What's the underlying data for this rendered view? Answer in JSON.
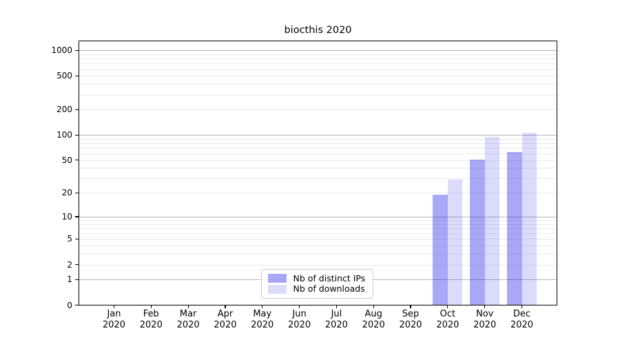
{
  "figure_title": "biocthis 2020",
  "chart_data": {
    "type": "bar",
    "title": "biocthis 2020",
    "categories": [
      "Jan",
      "Feb",
      "Mar",
      "Apr",
      "May",
      "Jun",
      "Jul",
      "Aug",
      "Sep",
      "Oct",
      "Nov",
      "Dec"
    ],
    "year_label": "2020",
    "series": [
      {
        "name": "Nb of distinct IPs",
        "color": "rgba(0,0,230,0.34)",
        "values": [
          0,
          0,
          0,
          0,
          0,
          0,
          0,
          0,
          0,
          19,
          51,
          62
        ]
      },
      {
        "name": "Nb of downloads",
        "color": "rgba(0,0,230,0.14)",
        "values": [
          0,
          0,
          0,
          0,
          0,
          0,
          0,
          0,
          0,
          29,
          94,
          106
        ]
      }
    ],
    "yticks": [
      0,
      1,
      2,
      5,
      10,
      20,
      50,
      100,
      200,
      500,
      1000
    ],
    "yscale": "log10(value+1), 0 at baseline",
    "ylim": [
      0,
      1300
    ],
    "xlabel": "",
    "ylabel": "",
    "grid": "horizontal major (powers of 10) + faint minors",
    "legend": {
      "entries": [
        "Nb of distinct IPs",
        "Nb of downloads"
      ],
      "position": "lower center"
    }
  },
  "colors": {
    "bar_distinct_ips": "rgba(0,0,230,0.34)",
    "bar_downloads": "rgba(0,0,230,0.14)",
    "grid_major": "#b6b6b6",
    "grid_minor": "#eaeaea",
    "spine": "#000000",
    "background": "#ffffff",
    "legend_border": "#cccccc"
  }
}
